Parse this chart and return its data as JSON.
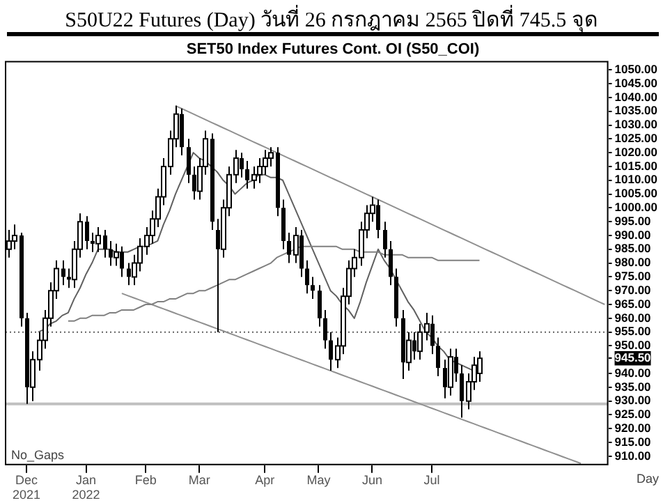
{
  "chart_data": {
    "type": "candlestick",
    "title": "S50U22 Futures (Day) วันที่ 26 กรกฎาคม 2565 ปิดที่ 745.5 จุด",
    "subtitle": "SET50 Index Futures Cont. OI (S50_COI)",
    "annotations": [
      "No_Gaps",
      "Day"
    ],
    "categories": [
      null,
      null,
      null,
      "Dec\n2021",
      null,
      null,
      null,
      null,
      null,
      null,
      null,
      null,
      null,
      "Jan\n2022",
      null,
      null,
      null,
      null,
      null,
      null,
      null,
      null,
      null,
      "Feb",
      null,
      null,
      null,
      null,
      null,
      null,
      null,
      null,
      "Mar",
      null,
      null,
      null,
      null,
      null,
      null,
      null,
      null,
      null,
      null,
      "Apr",
      null,
      null,
      null,
      null,
      null,
      null,
      null,
      null,
      "May",
      null,
      null,
      null,
      null,
      null,
      null,
      null,
      null,
      "Jun",
      null,
      null,
      null,
      null,
      null,
      null,
      null,
      null,
      null,
      "Jul",
      null,
      null,
      null,
      null,
      null,
      null,
      null,
      null,
      null,
      null,
      null,
      null,
      null,
      null,
      null,
      null,
      null,
      null,
      null,
      null,
      null,
      null,
      null,
      null,
      null,
      null,
      null,
      null,
      null
    ],
    "ohlc": [
      [
        985,
        992,
        982,
        988
      ],
      [
        988,
        994,
        985,
        990
      ],
      [
        990,
        991,
        957,
        960
      ],
      [
        960,
        962,
        929,
        935
      ],
      [
        935,
        948,
        930,
        945
      ],
      [
        945,
        955,
        941,
        952
      ],
      [
        952,
        963,
        949,
        960
      ],
      [
        960,
        973,
        957,
        970
      ],
      [
        970,
        981,
        967,
        978
      ],
      [
        978,
        981,
        972,
        975
      ],
      [
        975,
        978,
        971,
        974
      ],
      [
        974,
        988,
        971,
        985
      ],
      [
        985,
        998,
        982,
        995
      ],
      [
        995,
        997,
        985,
        988
      ],
      [
        988,
        991,
        984,
        987
      ],
      [
        987,
        993,
        984,
        990
      ],
      [
        990,
        992,
        982,
        985
      ],
      [
        985,
        988,
        979,
        982
      ],
      [
        982,
        987,
        979,
        984
      ],
      [
        984,
        986,
        975,
        978
      ],
      [
        978,
        980,
        972,
        975
      ],
      [
        975,
        983,
        972,
        980
      ],
      [
        980,
        989,
        977,
        986
      ],
      [
        986,
        993,
        983,
        990
      ],
      [
        990,
        999,
        987,
        996
      ],
      [
        996,
        1007,
        993,
        1004
      ],
      [
        1004,
        1018,
        1001,
        1015
      ],
      [
        1015,
        1028,
        1012,
        1025
      ],
      [
        1025,
        1037,
        1022,
        1034
      ],
      [
        1034,
        1036,
        1019,
        1022
      ],
      [
        1022,
        1025,
        1009,
        1012
      ],
      [
        1012,
        1015,
        1003,
        1006
      ],
      [
        1006,
        1018,
        1003,
        1015
      ],
      [
        1015,
        1028,
        1012,
        1025
      ],
      [
        1025,
        1027,
        992,
        995
      ],
      [
        992,
        996,
        955,
        985
      ],
      [
        985,
        1003,
        982,
        1000
      ],
      [
        1000,
        1015,
        997,
        1012
      ],
      [
        1012,
        1021,
        1009,
        1018
      ],
      [
        1018,
        1020,
        1011,
        1014
      ],
      [
        1014,
        1017,
        1007,
        1010
      ],
      [
        1010,
        1015,
        1007,
        1012
      ],
      [
        1012,
        1018,
        1009,
        1015
      ],
      [
        1015,
        1021,
        1012,
        1018
      ],
      [
        1018,
        1022,
        1015,
        1020
      ],
      [
        1020,
        1022,
        997,
        1000
      ],
      [
        1000,
        1003,
        985,
        988
      ],
      [
        988,
        991,
        980,
        983
      ],
      [
        983,
        993,
        980,
        990
      ],
      [
        990,
        992,
        975,
        978
      ],
      [
        978,
        981,
        969,
        972
      ],
      [
        972,
        975,
        967,
        970
      ],
      [
        970,
        972,
        957,
        960
      ],
      [
        960,
        963,
        949,
        952
      ],
      [
        952,
        955,
        941,
        945
      ],
      [
        945,
        953,
        942,
        950
      ],
      [
        950,
        971,
        947,
        968
      ],
      [
        968,
        981,
        965,
        978
      ],
      [
        978,
        985,
        975,
        982
      ],
      [
        982,
        995,
        979,
        992
      ],
      [
        992,
        1001,
        989,
        998
      ],
      [
        998,
        1004,
        995,
        1001
      ],
      [
        1001,
        1003,
        989,
        992
      ],
      [
        992,
        995,
        982,
        985
      ],
      [
        985,
        988,
        972,
        975
      ],
      [
        975,
        978,
        957,
        960
      ],
      [
        960,
        963,
        938,
        944
      ],
      [
        944,
        955,
        941,
        952
      ],
      [
        952,
        955,
        945,
        948
      ],
      [
        948,
        958,
        945,
        955
      ],
      [
        955,
        962,
        952,
        958
      ],
      [
        958,
        961,
        947,
        950
      ],
      [
        950,
        953,
        939,
        942
      ],
      [
        942,
        945,
        931,
        935
      ],
      [
        935,
        949,
        932,
        946
      ],
      [
        946,
        949,
        937,
        940
      ],
      [
        940,
        943,
        924,
        930
      ],
      [
        930,
        940,
        927,
        937
      ],
      [
        937,
        946,
        934,
        943
      ],
      [
        940,
        948,
        937,
        945.5
      ],
      null,
      null,
      null,
      null,
      null,
      null,
      null,
      null,
      null,
      null,
      null,
      null,
      null,
      null,
      null,
      null,
      null,
      null,
      null,
      null,
      null
    ],
    "series": [
      {
        "type": "line",
        "color": "#808080",
        "values": [
          null,
          null,
          null,
          null,
          null,
          null,
          null,
          null,
          null,
          null,
          959,
          959,
          960,
          960,
          961,
          961,
          961,
          962,
          962,
          963,
          963,
          963,
          964,
          965,
          965,
          966,
          966,
          967,
          967,
          968,
          969,
          969,
          970,
          970,
          971,
          972,
          973,
          974,
          974,
          975,
          976,
          977,
          978,
          979,
          980,
          982,
          983,
          984,
          985,
          986,
          986,
          986,
          986,
          986,
          986,
          986,
          985,
          985,
          985,
          984,
          984,
          984,
          984,
          983,
          983,
          983,
          983,
          982,
          982,
          982,
          982,
          982,
          981,
          981,
          981,
          981,
          981,
          981,
          981,
          981,
          null,
          null,
          null,
          null,
          null,
          null,
          null,
          null,
          null,
          null,
          null,
          null,
          null,
          null,
          null,
          null,
          null,
          null,
          null,
          null,
          null
        ]
      },
      {
        "type": "line",
        "color": "#606060",
        "values": [
          null,
          null,
          null,
          null,
          null,
          955,
          956,
          958,
          959,
          961,
          962,
          967,
          971,
          976,
          980,
          985,
          985,
          985,
          984,
          984,
          984,
          985,
          986,
          986,
          987,
          988,
          994,
          999,
          1005,
          1010,
          1015,
          1020,
          1018,
          1017,
          1015,
          1013,
          1010,
          1008,
          1005,
          1007,
          1009,
          1010,
          1012,
          1012,
          1011,
          1011,
          1010,
          1005,
          1000,
          995,
          990,
          985,
          980,
          975,
          970,
          968,
          965,
          963,
          960,
          966,
          973,
          979,
          985,
          981,
          978,
          974,
          970,
          966,
          963,
          959,
          955,
          953,
          950,
          948,
          945,
          944,
          943,
          942,
          941,
          null,
          null,
          null,
          null,
          null,
          null,
          null,
          null,
          null,
          null,
          null,
          null,
          null,
          null,
          null,
          null,
          null,
          null,
          null,
          null,
          null,
          null
        ]
      },
      {
        "type": "line",
        "color": "#909090",
        "values": [
          null,
          null,
          null,
          null,
          null,
          null,
          null,
          null,
          null,
          null,
          null,
          null,
          null,
          null,
          null,
          null,
          null,
          null,
          null,
          null,
          null,
          null,
          null,
          null,
          null,
          null,
          null,
          null,
          1037,
          1036,
          1035,
          1034,
          1033,
          1032,
          1031,
          1030,
          1029,
          1028,
          1027,
          1026,
          1025,
          1024,
          1023,
          1022,
          1021,
          1020,
          1019,
          1018,
          1017,
          1016,
          1015,
          1014,
          1013,
          1012,
          1011,
          1010,
          1009,
          1008,
          1007,
          1006,
          1005,
          1004,
          1003,
          1002,
          1001,
          1000,
          999,
          998,
          997,
          996,
          995,
          994,
          993,
          992,
          991,
          990,
          989,
          988,
          987,
          986,
          985,
          984,
          983,
          982,
          981,
          980,
          979,
          978,
          977,
          976,
          975,
          974,
          973,
          972,
          971,
          970,
          969,
          968,
          967,
          966,
          965
        ]
      },
      {
        "type": "line",
        "color": "#909090",
        "values": [
          null,
          null,
          null,
          null,
          null,
          null,
          null,
          null,
          null,
          null,
          null,
          null,
          null,
          null,
          null,
          null,
          null,
          null,
          null,
          969,
          968.2,
          967.4,
          966.6,
          965.8,
          965,
          964.2,
          963.4,
          962.6,
          961.8,
          961,
          960.2,
          959.4,
          958.6,
          957.8,
          957,
          956.2,
          955.4,
          954.6,
          953.8,
          953,
          952.2,
          951.4,
          950.6,
          949.8,
          949,
          948.2,
          947.4,
          946.6,
          945.8,
          945,
          944.2,
          943.4,
          942.6,
          941.8,
          941,
          940.2,
          939.4,
          938.6,
          937.8,
          937,
          936.2,
          935.4,
          934.6,
          933.8,
          933,
          932.2,
          931.4,
          930.6,
          929.8,
          929,
          928.2,
          927.4,
          926.6,
          925.8,
          925,
          924.2,
          923.4,
          922.6,
          921.8,
          921,
          920.2,
          919.4,
          918.6,
          917.8,
          917,
          916.2,
          915.4,
          914.6,
          913.8,
          913,
          912.2,
          911.4,
          910.6,
          909.8,
          909,
          908.2,
          907.4,
          null,
          null,
          null,
          null
        ]
      }
    ],
    "ref_lines": [
      {
        "axis": "y",
        "value": 955,
        "color": "#606060",
        "line_style": "dotted"
      },
      {
        "axis": "y",
        "value": 929,
        "color": "#c0c0c0",
        "line_style": "solid"
      }
    ],
    "ylim": [
      907,
      1053
    ],
    "yticks": [
      {
        "value": 1050,
        "label": "1050.00"
      },
      {
        "value": 1045,
        "label": "1045.00"
      },
      {
        "value": 1040,
        "label": "1040.00"
      },
      {
        "value": 1035,
        "label": "1035.00"
      },
      {
        "value": 1030,
        "label": "1030.00"
      },
      {
        "value": 1025,
        "label": "1025.00"
      },
      {
        "value": 1020,
        "label": "1020.00"
      },
      {
        "value": 1015,
        "label": "1015.00"
      },
      {
        "value": 1010,
        "label": "1010.00"
      },
      {
        "value": 1005,
        "label": "1005.00"
      },
      {
        "value": 1000,
        "label": "1000.00"
      },
      {
        "value": 995,
        "label": "995.00"
      },
      {
        "value": 990,
        "label": "990.00"
      },
      {
        "value": 985,
        "label": "985.00"
      },
      {
        "value": 980,
        "label": "980.00"
      },
      {
        "value": 975,
        "label": "975.00"
      },
      {
        "value": 970,
        "label": "970.00"
      },
      {
        "value": 965,
        "label": "965.00"
      },
      {
        "value": 960,
        "label": "960.00"
      },
      {
        "value": 955,
        "label": "955.00"
      },
      {
        "value": 950,
        "label": "950.00"
      },
      {
        "value": 945.5,
        "label": "945.50"
      },
      {
        "value": 940,
        "label": "940.00"
      },
      {
        "value": 935,
        "label": "935.00"
      },
      {
        "value": 930,
        "label": "930.00"
      },
      {
        "value": 925,
        "label": "925.00"
      },
      {
        "value": 920,
        "label": "920.00"
      },
      {
        "value": 915,
        "label": "915.00"
      },
      {
        "value": 910,
        "label": "910.00"
      }
    ]
  }
}
